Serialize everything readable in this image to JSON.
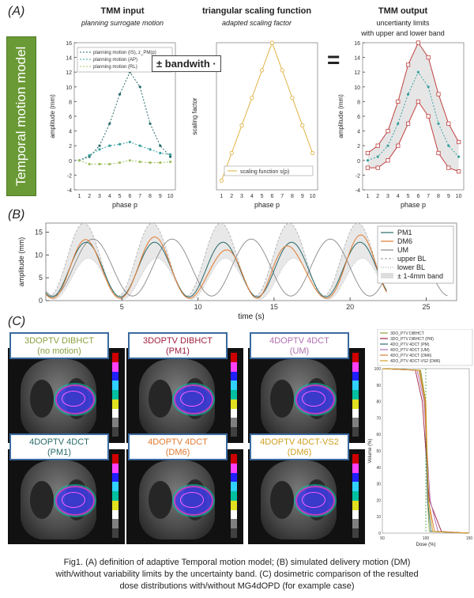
{
  "panelA": {
    "label": "(A)",
    "side_label": "Temporal motion model",
    "tmm_input": {
      "title": "TMM input",
      "subtitle": "planning surrogate motion"
    },
    "scaling": {
      "title": "triangular scaling function",
      "subtitle": "adapted scaling factor"
    },
    "tmm_output": {
      "title": "TMM output",
      "subtitle_lines": [
        "uncertianty limits",
        "with upper and lower band"
      ]
    },
    "bandwidth_box": "± bandwith ·",
    "equals": "="
  },
  "panelB": {
    "label": "(B)"
  },
  "panelC": {
    "label": "(C)"
  },
  "colors": {
    "green": "#6a9a35",
    "orange": "#e07a30",
    "teal": "#3aa0a0",
    "blue_border": "#3a6aa0",
    "gold": "#e0b040",
    "red": "#c04040"
  },
  "dose_panels": [
    {
      "line1": "3DOPTV DIBHCT",
      "line2": "(no motion)",
      "color": "#8aa040"
    },
    {
      "line1": "3DOPTV DIBHCT",
      "line2": "(PM1)",
      "color": "#a02040"
    },
    {
      "line1": "4DOPTV 4DCT",
      "line2": "(UM)",
      "color": "#b070b0"
    },
    {
      "line1": "4DOPTV 4DCT",
      "line2": "(PM1)",
      "color": "#2a6a6a"
    },
    {
      "line1": "4DOPTV 4DCT",
      "line2": "(DM6)",
      "color": "#e07a30"
    },
    {
      "line1": "4DOPTV 4DCT-VS2",
      "line2": "(DM6)",
      "color": "#d0a020"
    }
  ],
  "dvh_legend": [
    {
      "label": "3DO_PTV DIBHCT",
      "color": "#8aa040"
    },
    {
      "label": "3DO_PTV DIBHCT (PM)",
      "color": "#a02040"
    },
    {
      "label": "4DO_PTV 4DCT (PM)",
      "color": "#2a6a6a"
    },
    {
      "label": "4DO_PTV 4DCT (UM)",
      "color": "#b070b0"
    },
    {
      "label": "4DO_PTV 4DCT (DM6)",
      "color": "#e07a30"
    },
    {
      "label": "4DO_PTV 4DCT-VS2 (DM6)",
      "color": "#d0a020"
    }
  ],
  "caption_lines": [
    "Fig1. (A) definition of adaptive Temporal motion model; (B) simulated delivery motion (DM)",
    "with/without  variability limits by the uncertainty band. (C) dosimetric comparison of the resulted",
    "dose distributions with/without  MG4dOPD (for example case)"
  ],
  "chart_data": [
    {
      "type": "line",
      "title": "TMM input",
      "xlabel": "phase p",
      "ylabel": "amplitude (mm)",
      "x": [
        1,
        2,
        3,
        4,
        5,
        6,
        7,
        8,
        9,
        10
      ],
      "ylim": [
        -4,
        16
      ],
      "yticks": [
        -4,
        -2,
        0,
        2,
        4,
        6,
        8,
        10,
        12,
        14,
        16
      ],
      "series": [
        {
          "name": "planning motion (IS), z_PM(p)",
          "values": [
            0,
            0.5,
            2,
            5,
            9,
            12,
            10,
            5,
            2,
            0.5
          ]
        },
        {
          "name": "planning motion (AP)",
          "values": [
            0,
            0.7,
            1.5,
            2.0,
            2.2,
            2.5,
            2.0,
            1.5,
            1.0,
            0.8
          ]
        },
        {
          "name": "planning motion (RL)",
          "values": [
            0,
            -0.5,
            -0.5,
            -0.5,
            -0.3,
            0,
            -0.2,
            -0.3,
            -0.3,
            -0.2
          ]
        }
      ]
    },
    {
      "type": "line",
      "title": "triangular scaling function",
      "xlabel": "phase p",
      "ylabel": "scaling factor",
      "x": [
        1,
        2,
        3,
        4,
        5,
        6,
        7,
        8,
        9,
        10
      ],
      "ylim": [
        0.2,
        1
      ],
      "series": [
        {
          "name": "scaling function s(p)",
          "values": [
            0.25,
            0.4,
            0.55,
            0.7,
            0.85,
            1.0,
            0.85,
            0.7,
            0.55,
            0.4
          ]
        }
      ]
    },
    {
      "type": "line",
      "title": "TMM output",
      "xlabel": "phase p",
      "ylabel": "amplitude (mm)",
      "x": [
        1,
        2,
        3,
        4,
        5,
        6,
        7,
        8,
        9,
        10
      ],
      "ylim": [
        -4,
        16
      ],
      "yticks": [
        -4,
        -2,
        0,
        2,
        4,
        6,
        8,
        10,
        12,
        14,
        16
      ],
      "series": [
        {
          "values": [
            1.0,
            2.0,
            4.0,
            8.0,
            13.0,
            16.0,
            14.0,
            9.0,
            5.0,
            2.5
          ]
        },
        {
          "values": [
            0.0,
            0.5,
            2.0,
            5.0,
            9.0,
            12.0,
            10.0,
            5.0,
            2.0,
            0.5
          ]
        },
        {
          "values": [
            -1.0,
            -1.0,
            0.0,
            2.0,
            5.0,
            8.0,
            6.0,
            1.0,
            -1.0,
            -1.5
          ]
        }
      ]
    },
    {
      "type": "line",
      "xlabel": "time (s)",
      "ylabel": "amplitude (mm)",
      "xlim": [
        0,
        27
      ],
      "xticks": [
        5,
        10,
        15,
        20,
        25
      ],
      "ylim": [
        0,
        17
      ],
      "yticks": [
        0,
        5,
        10,
        15
      ],
      "legend_position": "right",
      "series": [
        {
          "name": "PM1",
          "color": "#2a6a6a"
        },
        {
          "name": "DM6",
          "color": "#e07a30"
        },
        {
          "name": "UM",
          "color": "#888888"
        },
        {
          "name": "upper BL",
          "color": "#aaaaaa"
        },
        {
          "name": "lower BL",
          "color": "#aaaaaa"
        },
        {
          "name": "± 1-4mm band",
          "color": "#dddddd"
        }
      ]
    },
    {
      "type": "line",
      "xlabel": "Dose (%)",
      "ylabel": "Volume (%)",
      "xlim": [
        50,
        150
      ],
      "xticks": [
        50,
        100,
        150
      ],
      "ylim": [
        0,
        100
      ],
      "yticks": [
        0,
        10,
        20,
        30,
        40,
        50,
        60,
        70,
        80,
        90,
        100
      ]
    }
  ]
}
